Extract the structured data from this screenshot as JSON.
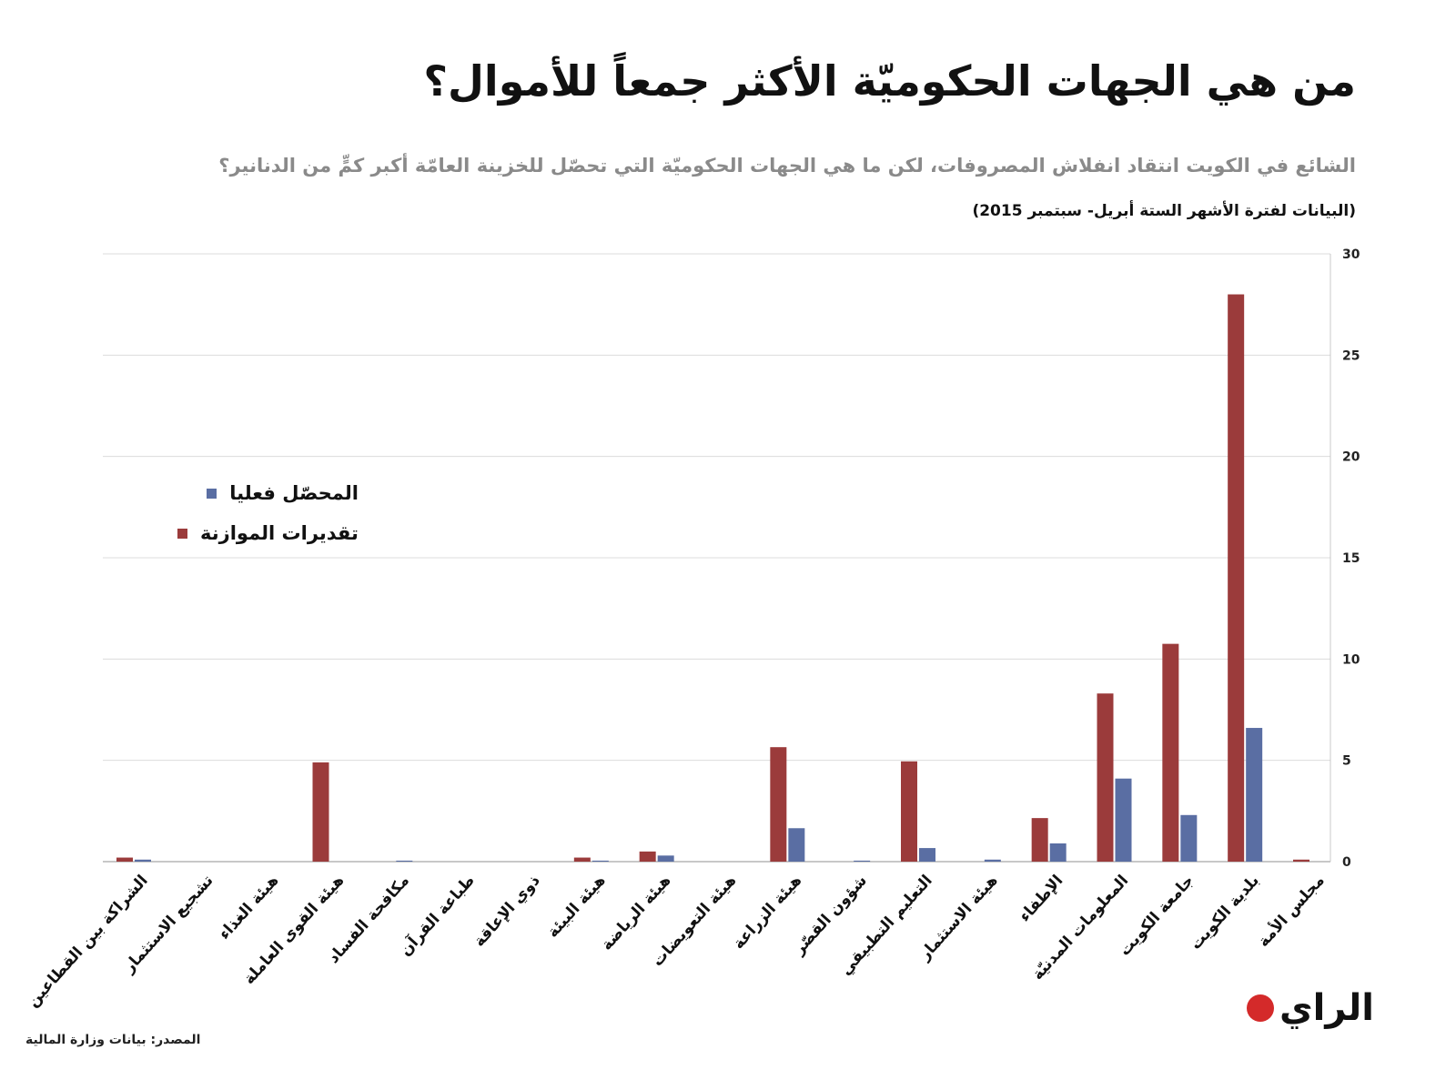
{
  "chart_data": {
    "type": "bar",
    "title": "من هي الجهات الحكوميّة الأكثر جمعاً للأموال؟",
    "subtitle": "الشائع في الكويت انتقاد انفلاش المصروفات، لكن ما هي الجهات الحكوميّة التي تحصّل للخزينة العامّة أكبر كمٍّ من الدنانير؟",
    "note": "(البيانات لفترة الأشهر الستة أبريل- سبتمبر 2015)",
    "source": "المصدر: بيانات وزارة المالية",
    "logo": "الراي",
    "xlabel": "",
    "ylabel": "",
    "ylim": [
      0,
      30
    ],
    "yticks": [
      0,
      5,
      10,
      15,
      20,
      25,
      30
    ],
    "grid": true,
    "legend_position": "left",
    "categories": [
      "الشراكة بين القطاعين",
      "تشجيع الاستثمار",
      "هيئة الغذاء",
      "هيئة القوى العاملة",
      "مكافحة الفساد",
      "طباعة القرآن",
      "ذوي الإعاقة",
      "هيئة البيئة",
      "هيئة الرياضة",
      "هيئة التعويضات",
      "هيئة الزراعة",
      "شؤون القصّر",
      "التعليم التطبيقي",
      "هيئة الاستثمار",
      "الإطفاء",
      "المعلومات المدنيّة",
      "جامعة الكويت",
      "بلدية الكويت",
      "مجلس الأمة"
    ],
    "series": [
      {
        "name": "تقديرات الموازنة",
        "color": "#9b3b3b",
        "values": [
          0.2,
          0,
          0,
          4.9,
          0,
          0,
          0,
          0.2,
          0.5,
          0,
          5.65,
          0,
          4.95,
          0,
          2.15,
          8.3,
          10.75,
          28,
          0.1
        ]
      },
      {
        "name": "المحصّل فعليا",
        "color": "#5a6ea3",
        "values": [
          0.1,
          0,
          0,
          0,
          0.05,
          0,
          0,
          0.05,
          0.3,
          0,
          1.65,
          0.05,
          0.67,
          0.1,
          0.9,
          4.1,
          2.3,
          6.6,
          0
        ]
      }
    ]
  }
}
